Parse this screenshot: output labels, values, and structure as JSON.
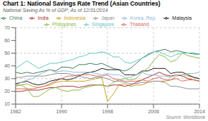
{
  "chart_data": {
    "type": "line",
    "title": "Chart 1: National Savings Rate Trend (Asian Countries)",
    "subtitle": "National Saving As % of GDP; As of 12/31/2014",
    "annotations": [
      "Source: Worldbook"
    ],
    "x": [
      1982,
      1983,
      1984,
      1985,
      1986,
      1987,
      1988,
      1989,
      1990,
      1991,
      1992,
      1993,
      1994,
      1995,
      1996,
      1997,
      1998,
      1999,
      2000,
      2001,
      2002,
      2003,
      2004,
      2005,
      2006,
      2007,
      2008,
      2009,
      2010,
      2011,
      2012,
      2013,
      2014
    ],
    "xlim": [
      1982,
      2014
    ],
    "xticks": [
      1982,
      1990,
      1998,
      2006,
      2014
    ],
    "ylim": [
      10,
      70
    ],
    "yticks": [
      10,
      20,
      30,
      40,
      50,
      60,
      70
    ],
    "grid": true,
    "legend": "top",
    "series": [
      {
        "name": "China",
        "color": "#3a7d5a",
        "values": [
          35,
          34,
          35,
          34,
          35,
          36,
          37,
          36,
          39,
          39,
          38,
          41,
          41,
          42,
          41,
          42,
          40,
          38,
          37,
          36,
          38,
          42,
          46,
          49,
          51,
          52,
          53,
          51,
          52,
          51,
          50,
          50,
          49
        ]
      },
      {
        "name": "Indonesia",
        "color": "#c8a020",
        "values": [
          24,
          25,
          26,
          24,
          23,
          24,
          25,
          27,
          28,
          28,
          28,
          28,
          28,
          29,
          30,
          31,
          12,
          18,
          25,
          26,
          24,
          25,
          25,
          27,
          28,
          28,
          28,
          29,
          32,
          33,
          32,
          31,
          30
        ]
      },
      {
        "name": "India",
        "color": "#a83030",
        "values": [
          20,
          20,
          21,
          21,
          21,
          22,
          23,
          23,
          24,
          24,
          24,
          23,
          24,
          25,
          25,
          25,
          24,
          25,
          25,
          24,
          25,
          27,
          29,
          31,
          33,
          35,
          33,
          32,
          33,
          32,
          30,
          29,
          28
        ]
      },
      {
        "name": "Malaysia",
        "color": "#1a1a1a",
        "values": [
          26,
          27,
          28,
          26,
          25,
          26,
          28,
          29,
          30,
          29,
          30,
          32,
          34,
          35,
          36,
          38,
          37,
          37,
          37,
          33,
          33,
          33,
          36,
          36,
          38,
          38,
          38,
          34,
          35,
          35,
          33,
          31,
          30
        ]
      },
      {
        "name": "Philippines",
        "color": "#88b840",
        "values": [
          25,
          25,
          22,
          16,
          16,
          19,
          22,
          23,
          21,
          20,
          21,
          21,
          23,
          24,
          25,
          25,
          24,
          27,
          29,
          30,
          29,
          30,
          35,
          38,
          44,
          49,
          47,
          43,
          45,
          50,
          48,
          47,
          46
        ]
      },
      {
        "name": "Singapore",
        "color": "#60c8c0",
        "values": [
          38,
          41,
          44,
          41,
          38,
          40,
          42,
          42,
          43,
          44,
          45,
          47,
          48,
          50,
          50,
          51,
          50,
          47,
          47,
          43,
          42,
          44,
          46,
          48,
          51,
          51,
          49,
          47,
          49,
          50,
          50,
          49,
          49
        ]
      },
      {
        "name": "Thailand",
        "color": "#d86858",
        "values": [
          22,
          22,
          22,
          22,
          23,
          24,
          26,
          28,
          30,
          32,
          32,
          33,
          33,
          33,
          32,
          32,
          33,
          30,
          29,
          28,
          28,
          28,
          29,
          28,
          30,
          31,
          29,
          29,
          30,
          28,
          29,
          29,
          28
        ]
      },
      {
        "name": "Korea, Rep.",
        "color": "#90b8d8",
        "values": [
          25,
          27,
          29,
          30,
          33,
          35,
          37,
          35,
          36,
          36,
          35,
          35,
          35,
          35,
          34,
          33,
          34,
          33,
          33,
          31,
          31,
          33,
          35,
          33,
          33,
          32,
          32,
          31,
          33,
          33,
          34,
          34,
          35
        ]
      },
      {
        "name": "Japan",
        "color": "#909090",
        "values": [
          31,
          31,
          32,
          32,
          32,
          32,
          33,
          34,
          34,
          34,
          33,
          32,
          31,
          30,
          31,
          31,
          30,
          28,
          28,
          27,
          26,
          26,
          27,
          27,
          28,
          28,
          27,
          24,
          24,
          23,
          22,
          22,
          22
        ]
      }
    ]
  }
}
